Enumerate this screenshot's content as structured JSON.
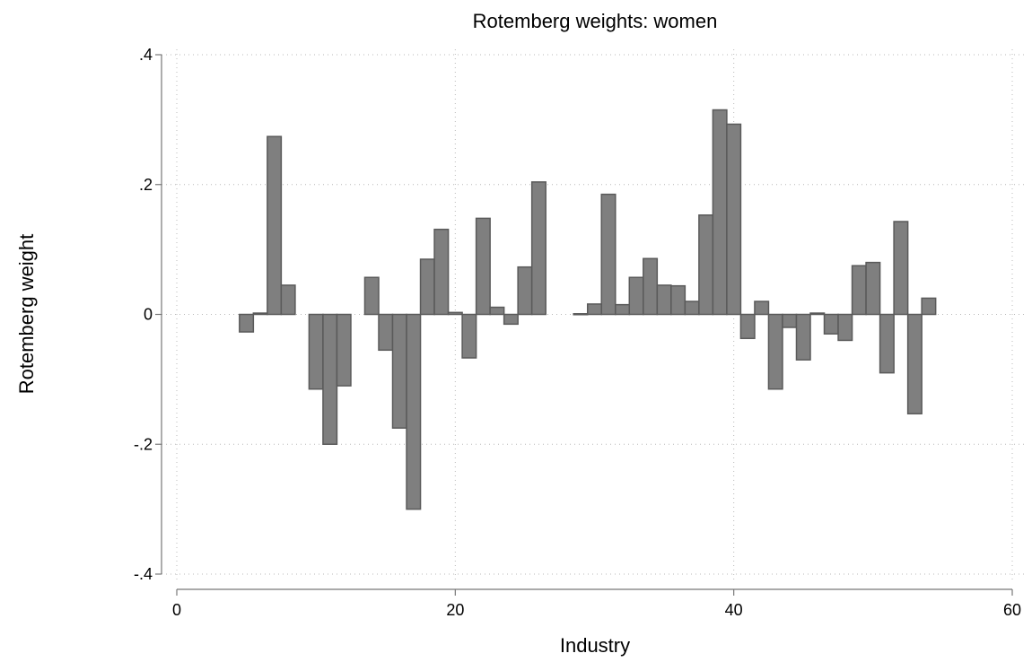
{
  "chart_data": {
    "type": "bar",
    "title": "Rotemberg weights: women",
    "xlabel": "Industry",
    "ylabel": "Rotemberg weight",
    "xlim": [
      0,
      60
    ],
    "ylim": [
      -0.4,
      0.4
    ],
    "xticks": [
      0,
      20,
      40,
      60
    ],
    "xtick_labels": [
      "0",
      "20",
      "40",
      "60"
    ],
    "yticks": [
      -0.4,
      -0.2,
      0,
      0.2,
      0.4
    ],
    "ytick_labels": [
      "-.4",
      "-.2",
      "0",
      ".2",
      ".4"
    ],
    "grid": true,
    "bar_width": 1,
    "x": [
      5,
      6,
      7,
      8,
      10,
      11,
      12,
      14,
      15,
      16,
      17,
      18,
      19,
      20,
      21,
      22,
      23,
      24,
      25,
      26,
      29,
      30,
      31,
      32,
      33,
      34,
      35,
      36,
      37,
      38,
      39,
      40,
      41,
      42,
      43,
      44,
      45,
      46,
      47,
      48,
      49,
      50,
      51,
      52,
      53,
      54
    ],
    "values": [
      -0.027,
      0.002,
      0.274,
      0.045,
      -0.115,
      -0.2,
      -0.11,
      0.057,
      -0.055,
      -0.175,
      -0.3,
      0.085,
      0.131,
      0.003,
      -0.067,
      0.148,
      0.011,
      -0.015,
      0.073,
      0.204,
      0.001,
      0.016,
      0.185,
      0.015,
      0.057,
      0.086,
      0.045,
      0.044,
      0.02,
      0.153,
      0.315,
      0.293,
      -0.037,
      0.02,
      -0.115,
      -0.02,
      -0.07,
      0.002,
      -0.03,
      -0.04,
      0.075,
      0.08,
      -0.09,
      0.143,
      -0.153,
      0.025
    ]
  }
}
